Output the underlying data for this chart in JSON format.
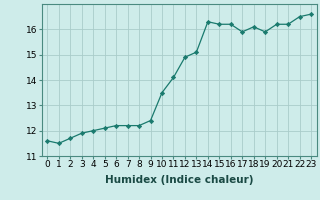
{
  "x": [
    0,
    1,
    2,
    3,
    4,
    5,
    6,
    7,
    8,
    9,
    10,
    11,
    12,
    13,
    14,
    15,
    16,
    17,
    18,
    19,
    20,
    21,
    22,
    23
  ],
  "y": [
    11.6,
    11.5,
    11.7,
    11.9,
    12.0,
    12.1,
    12.2,
    12.2,
    12.2,
    12.4,
    13.5,
    14.1,
    14.9,
    15.1,
    16.3,
    16.2,
    16.2,
    15.9,
    16.1,
    15.9,
    16.2,
    16.2,
    16.5,
    16.6
  ],
  "line_color": "#1a7a6e",
  "marker": "D",
  "marker_size": 2.2,
  "background_color": "#ceecea",
  "grid_color": "#aaccca",
  "xlabel": "Humidex (Indice chaleur)",
  "xlim": [
    -0.5,
    23.5
  ],
  "ylim": [
    11,
    17
  ],
  "yticks": [
    11,
    12,
    13,
    14,
    15,
    16
  ],
  "xticks": [
    0,
    1,
    2,
    3,
    4,
    5,
    6,
    7,
    8,
    9,
    10,
    11,
    12,
    13,
    14,
    15,
    16,
    17,
    18,
    19,
    20,
    21,
    22,
    23
  ],
  "xtick_labels": [
    "0",
    "1",
    "2",
    "3",
    "4",
    "5",
    "6",
    "7",
    "8",
    "9",
    "10",
    "11",
    "12",
    "13",
    "14",
    "15",
    "16",
    "17",
    "18",
    "19",
    "20",
    "21",
    "22",
    "23"
  ],
  "label_fontsize": 7.5,
  "tick_fontsize": 6.5
}
